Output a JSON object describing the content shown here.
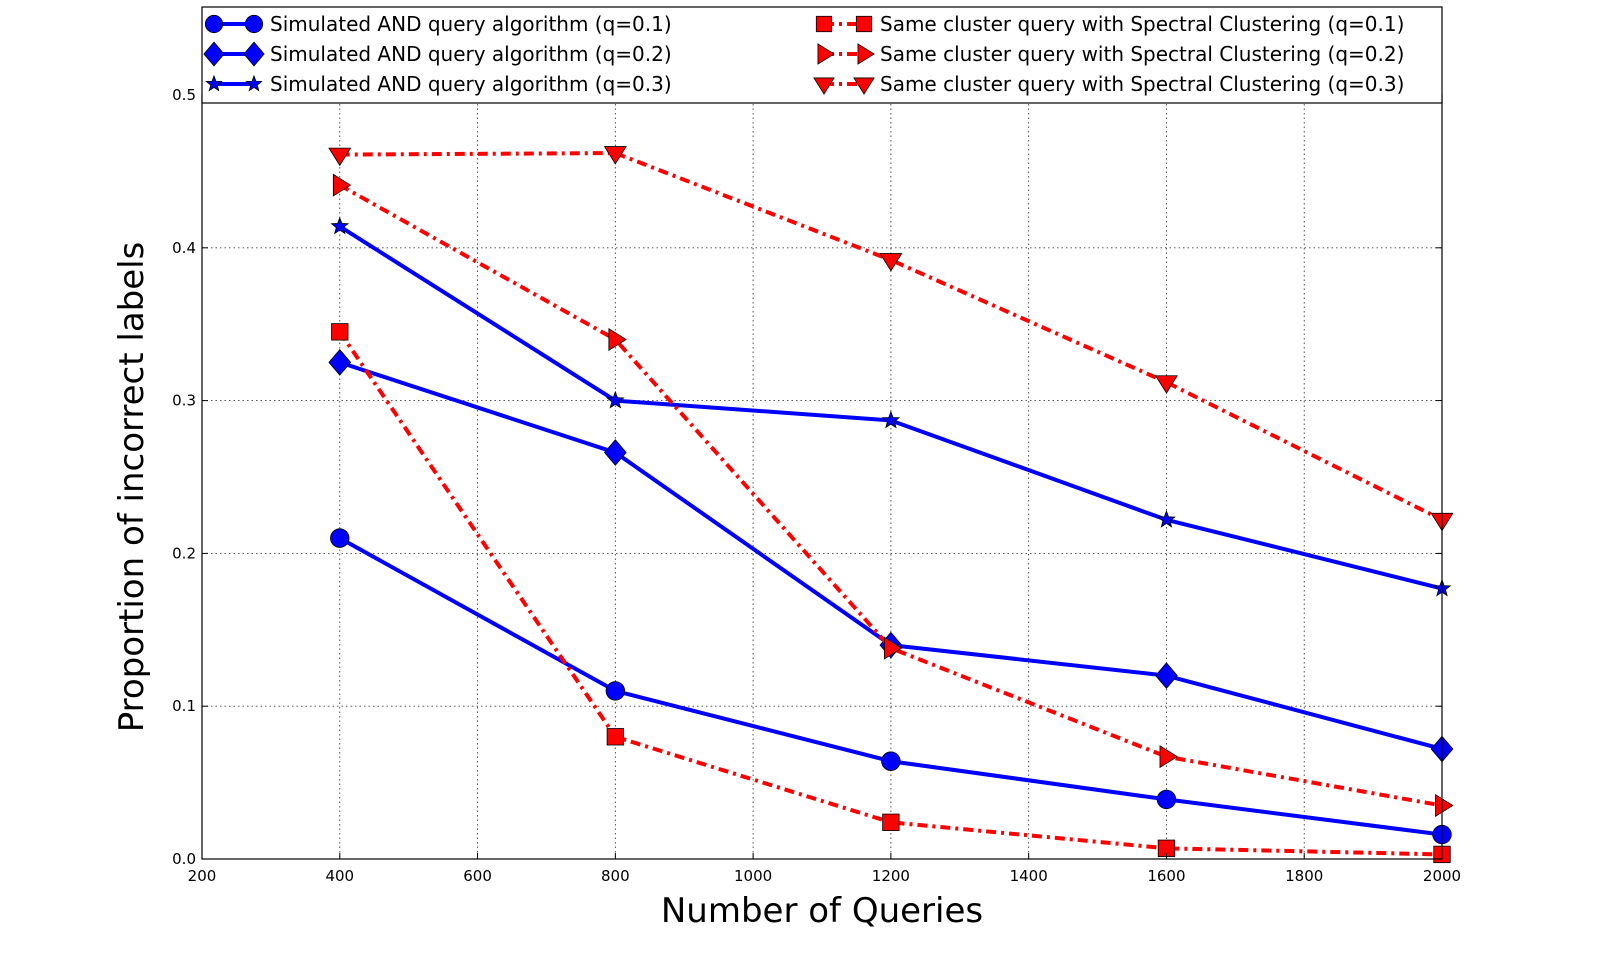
{
  "chart_data": {
    "type": "line",
    "title": "",
    "xlabel": "Number of Queries",
    "ylabel": "Proportion of incorrect labels",
    "xlim": [
      200,
      2000
    ],
    "ylim": [
      0.0,
      0.5
    ],
    "xticks": [
      200,
      400,
      600,
      800,
      1000,
      1200,
      1400,
      1600,
      1800,
      2000
    ],
    "yticks": [
      0.0,
      0.1,
      0.2,
      0.3,
      0.4,
      0.5
    ],
    "xtick_labels": [
      "200",
      "400",
      "600",
      "800",
      "1000",
      "1200",
      "1400",
      "1600",
      "1800",
      "2000"
    ],
    "ytick_labels": [
      "0.0",
      "0.1",
      "0.2",
      "0.3",
      "0.4",
      "0.5"
    ],
    "grid": true,
    "legend_position": "top",
    "x": [
      400,
      800,
      1200,
      1600,
      2000
    ],
    "series": [
      {
        "name": "Simulated AND query algorithm (q=0.1)",
        "color": "#0000ff",
        "line": "solid",
        "marker": "circle",
        "values": [
          0.21,
          0.11,
          0.064,
          0.039,
          0.016
        ]
      },
      {
        "name": "Simulated AND query algorithm (q=0.2)",
        "color": "#0000ff",
        "line": "solid",
        "marker": "diamond",
        "values": [
          0.325,
          0.266,
          0.14,
          0.12,
          0.072
        ]
      },
      {
        "name": "Simulated AND query algorithm (q=0.3)",
        "color": "#0000ff",
        "line": "solid",
        "marker": "star",
        "values": [
          0.414,
          0.3,
          0.287,
          0.222,
          0.177
        ]
      },
      {
        "name": "Same cluster query with Spectral Clustering (q=0.1)",
        "color": "#ff0000",
        "line": "dashdot",
        "marker": "square",
        "values": [
          0.345,
          0.08,
          0.024,
          0.007,
          0.003
        ]
      },
      {
        "name": "Same cluster query with Spectral Clustering (q=0.2)",
        "color": "#ff0000",
        "line": "dashdot",
        "marker": "triangle-right",
        "values": [
          0.441,
          0.34,
          0.138,
          0.067,
          0.035
        ]
      },
      {
        "name": "Same cluster query with Spectral Clustering (q=0.3)",
        "color": "#ff0000",
        "line": "dashdot",
        "marker": "triangle-down",
        "values": [
          0.461,
          0.462,
          0.392,
          0.312,
          0.222
        ]
      }
    ]
  }
}
